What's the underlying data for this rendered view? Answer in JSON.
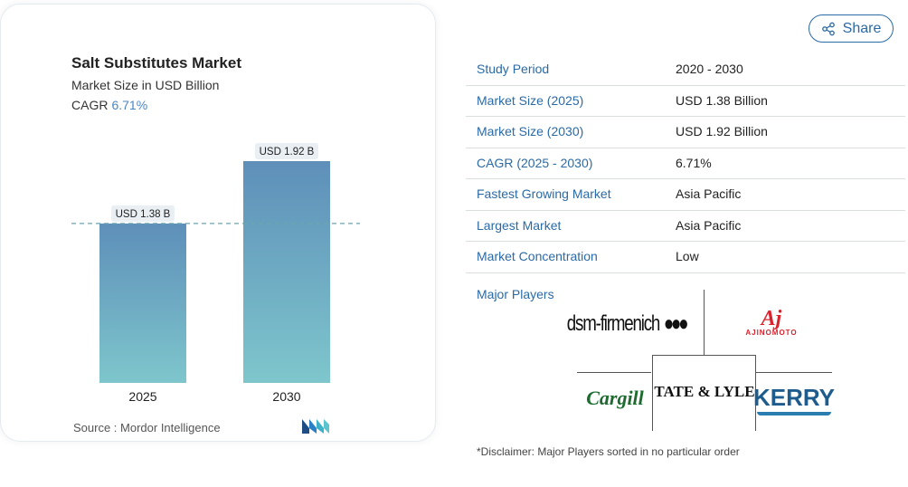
{
  "card": {
    "title": "Salt Substitutes Market",
    "subtitle": "Market Size in USD Billion",
    "cagr_label": "CAGR",
    "cagr_value": "6.71%",
    "source": "Source :  Mordor Intelligence",
    "logo_icon": "mordor-intelligence-logo"
  },
  "chart_data": {
    "type": "bar",
    "categories": [
      "2025",
      "2030"
    ],
    "values": [
      1.38,
      1.92
    ],
    "data_labels": [
      "USD 1.38 B",
      "USD 1.92 B"
    ],
    "title": "Salt Substitutes Market",
    "subtitle": "Market Size in USD Billion",
    "reference_line": 1.38,
    "ylim": [
      0,
      1.92
    ],
    "grid": false,
    "colors": {
      "bar_top": "#5e8fb9",
      "bar_bottom": "#7ec6cc",
      "dash": "#6aa6ad",
      "label_bg": "#e9eff3"
    }
  },
  "share": {
    "label": "Share",
    "icon": "share-icon"
  },
  "table": {
    "rows": [
      {
        "key": "Study Period",
        "value": "2020 - 2030"
      },
      {
        "key": "Market Size (2025)",
        "value": "USD 1.38 Billion"
      },
      {
        "key": "Market Size (2030)",
        "value": "USD 1.92 Billion"
      },
      {
        "key": "CAGR (2025 - 2030)",
        "value": "6.71%"
      },
      {
        "key": "Fastest Growing Market",
        "value": "Asia Pacific"
      },
      {
        "key": "Largest Market",
        "value": "Asia Pacific"
      },
      {
        "key": "Market Concentration",
        "value": "Low"
      }
    ]
  },
  "major_players": {
    "label": "Major Players",
    "logos": {
      "dsm": "dsm-firmenich",
      "aji_big": "Aj",
      "aji_small": "AJINOMOTO",
      "cargill": "Cargill",
      "tate": "TATE & LYLE",
      "kerry": "KERRY"
    }
  },
  "disclaimer": "*Disclaimer: Major Players sorted in no particular order"
}
